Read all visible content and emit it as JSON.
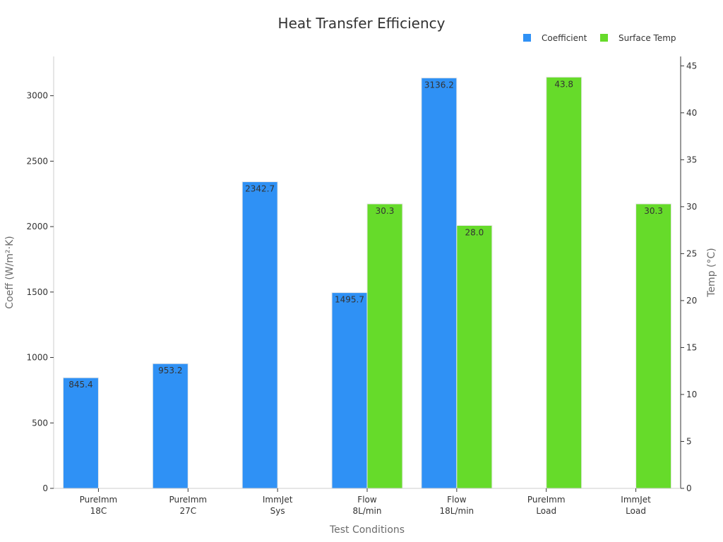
{
  "chart_data": {
    "type": "bar",
    "title": "Heat Transfer Efficiency",
    "xlabel": "Test Conditions",
    "ylabel": "Coeff (W/m²·K)",
    "ylabel_right": "Temp (°C)",
    "categories": [
      [
        "PureImm",
        "18C"
      ],
      [
        "PureImm",
        "27C"
      ],
      [
        "ImmJet",
        "Sys"
      ],
      [
        "Flow",
        "8L/min"
      ],
      [
        "Flow",
        "18L/min"
      ],
      [
        "PureImm",
        "Load"
      ],
      [
        "ImmJet",
        "Load"
      ]
    ],
    "series": [
      {
        "name": "Coefficient",
        "axis": "left",
        "color": "#2f91f5",
        "values": [
          845.4,
          953.2,
          2342.7,
          1495.7,
          3136.2,
          null,
          null
        ],
        "labels": [
          "845.4",
          "953.2",
          "2342.7",
          "1495.7",
          "3136.2",
          "",
          ""
        ]
      },
      {
        "name": "Surface Temp",
        "axis": "right",
        "color": "#66db2a",
        "values": [
          null,
          null,
          null,
          30.3,
          28.0,
          43.8,
          30.3
        ],
        "labels": [
          "",
          "",
          "",
          "30.3",
          "28.0",
          "43.8",
          "30.3"
        ]
      }
    ],
    "ylim": [
      0,
      3300
    ],
    "ylim_right": [
      0,
      46
    ],
    "yticks": [
      "0",
      "500",
      "1000",
      "1500",
      "2000",
      "2500",
      "3000"
    ],
    "yticks_right": [
      "0",
      "5",
      "10",
      "15",
      "20",
      "25",
      "30",
      "35",
      "40",
      "45"
    ],
    "legend_position": "top-right",
    "grid": false
  }
}
